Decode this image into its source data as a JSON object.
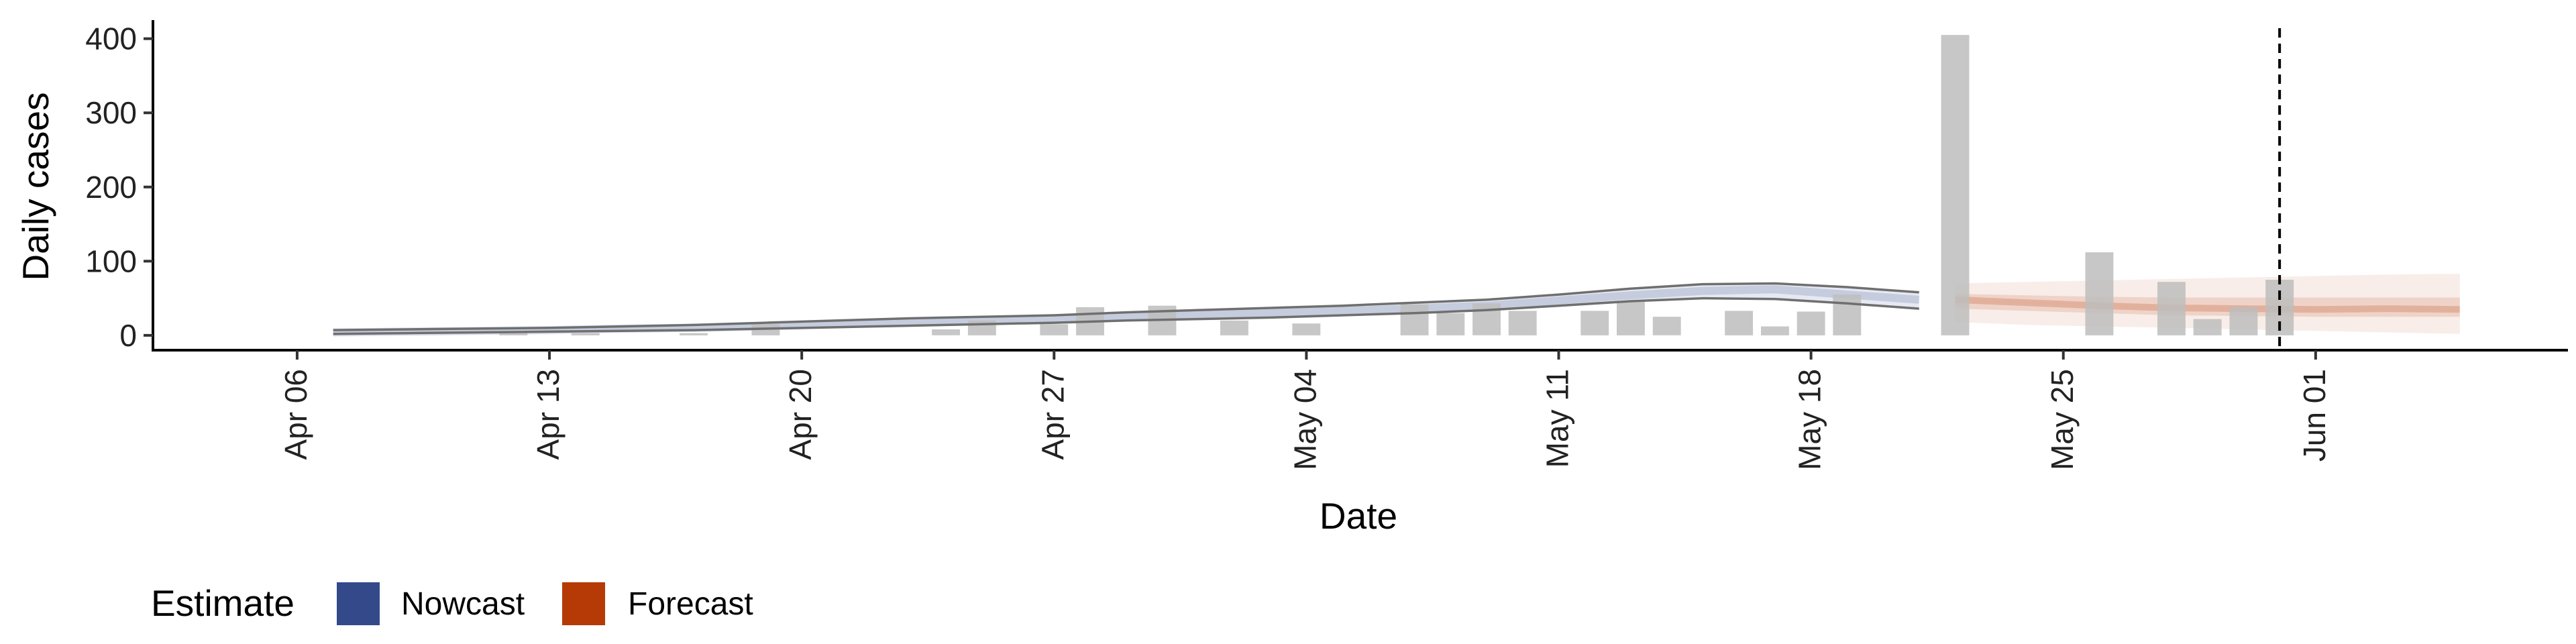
{
  "chart_data": {
    "type": "bar",
    "xlabel": "Date",
    "ylabel": "Daily cases",
    "x_tick_labels": [
      "Apr 06",
      "Apr 13",
      "Apr 20",
      "Apr 27",
      "May 04",
      "May 11",
      "May 18",
      "May 25",
      "Jun 01"
    ],
    "x_tick_dates": [
      "2020-04-06",
      "2020-04-13",
      "2020-04-20",
      "2020-04-27",
      "2020-05-04",
      "2020-05-11",
      "2020-05-18",
      "2020-05-25",
      "2020-06-01"
    ],
    "xlim": [
      "2020-04-02",
      "2020-06-08"
    ],
    "y_ticks": [
      0,
      100,
      200,
      300,
      400
    ],
    "ylim": [
      -20,
      425
    ],
    "grid": false,
    "legend_placement": "bottom-left",
    "reference_line": {
      "date": "2020-05-31",
      "style": "dashed"
    },
    "observed_cases": {
      "name": "Observed",
      "color": "#bdbdbd",
      "dates": [
        "2020-04-12",
        "2020-04-14",
        "2020-04-17",
        "2020-04-19",
        "2020-04-24",
        "2020-04-25",
        "2020-04-27",
        "2020-04-28",
        "2020-04-30",
        "2020-05-02",
        "2020-05-04",
        "2020-05-07",
        "2020-05-08",
        "2020-05-09",
        "2020-05-10",
        "2020-05-12",
        "2020-05-13",
        "2020-05-14",
        "2020-05-16",
        "2020-05-17",
        "2020-05-18",
        "2020-05-19",
        "2020-05-22",
        "2020-05-26",
        "2020-05-28",
        "2020-05-29",
        "2020-05-30",
        "2020-05-31"
      ],
      "values": [
        3,
        3,
        3,
        15,
        8,
        20,
        15,
        38,
        40,
        20,
        16,
        42,
        30,
        43,
        33,
        33,
        45,
        25,
        33,
        12,
        32,
        55,
        405,
        112,
        72,
        22,
        38,
        75
      ]
    },
    "series": [
      {
        "name": "Nowcast",
        "color": "#33498a",
        "dates": [
          "2020-04-07",
          "2020-04-09",
          "2020-04-11",
          "2020-04-13",
          "2020-04-15",
          "2020-04-17",
          "2020-04-19",
          "2020-04-21",
          "2020-04-23",
          "2020-04-25",
          "2020-04-27",
          "2020-04-29",
          "2020-05-01",
          "2020-05-03",
          "2020-05-05",
          "2020-05-07",
          "2020-05-09",
          "2020-05-11",
          "2020-05-13",
          "2020-05-15",
          "2020-05-17",
          "2020-05-19",
          "2020-05-21"
        ],
        "median": [
          4,
          5,
          6,
          7,
          9,
          10,
          12,
          15,
          17,
          19,
          21,
          24,
          27,
          30,
          33,
          36,
          40,
          47,
          54,
          60,
          62,
          55,
          48
        ],
        "lower": [
          2,
          3,
          4,
          5,
          6,
          7,
          9,
          11,
          13,
          15,
          17,
          20,
          22,
          24,
          27,
          30,
          34,
          40,
          46,
          50,
          49,
          43,
          36
        ],
        "upper": [
          7,
          8,
          9,
          10,
          12,
          14,
          17,
          20,
          23,
          25,
          27,
          31,
          34,
          37,
          40,
          44,
          48,
          55,
          63,
          69,
          70,
          65,
          58
        ]
      },
      {
        "name": "Forecast",
        "color": "#b53a05",
        "dates": [
          "2020-05-22",
          "2020-05-24",
          "2020-05-26",
          "2020-05-28",
          "2020-05-30",
          "2020-06-01",
          "2020-06-03",
          "2020-06-05"
        ],
        "median": [
          48,
          44,
          40,
          37,
          36,
          35,
          36,
          35
        ],
        "lower50": [
          36,
          33,
          30,
          27,
          26,
          25,
          25,
          25
        ],
        "upper50": [
          56,
          54,
          52,
          51,
          51,
          51,
          51,
          51
        ],
        "lower90": [
          18,
          14,
          12,
          10,
          8,
          6,
          4,
          2
        ],
        "upper90": [
          70,
          72,
          74,
          76,
          78,
          80,
          82,
          83
        ]
      }
    ]
  },
  "legend": {
    "title": "Estimate",
    "items": [
      {
        "label": "Nowcast",
        "color": "#33498a"
      },
      {
        "label": "Forecast",
        "color": "#b53a05"
      }
    ]
  }
}
